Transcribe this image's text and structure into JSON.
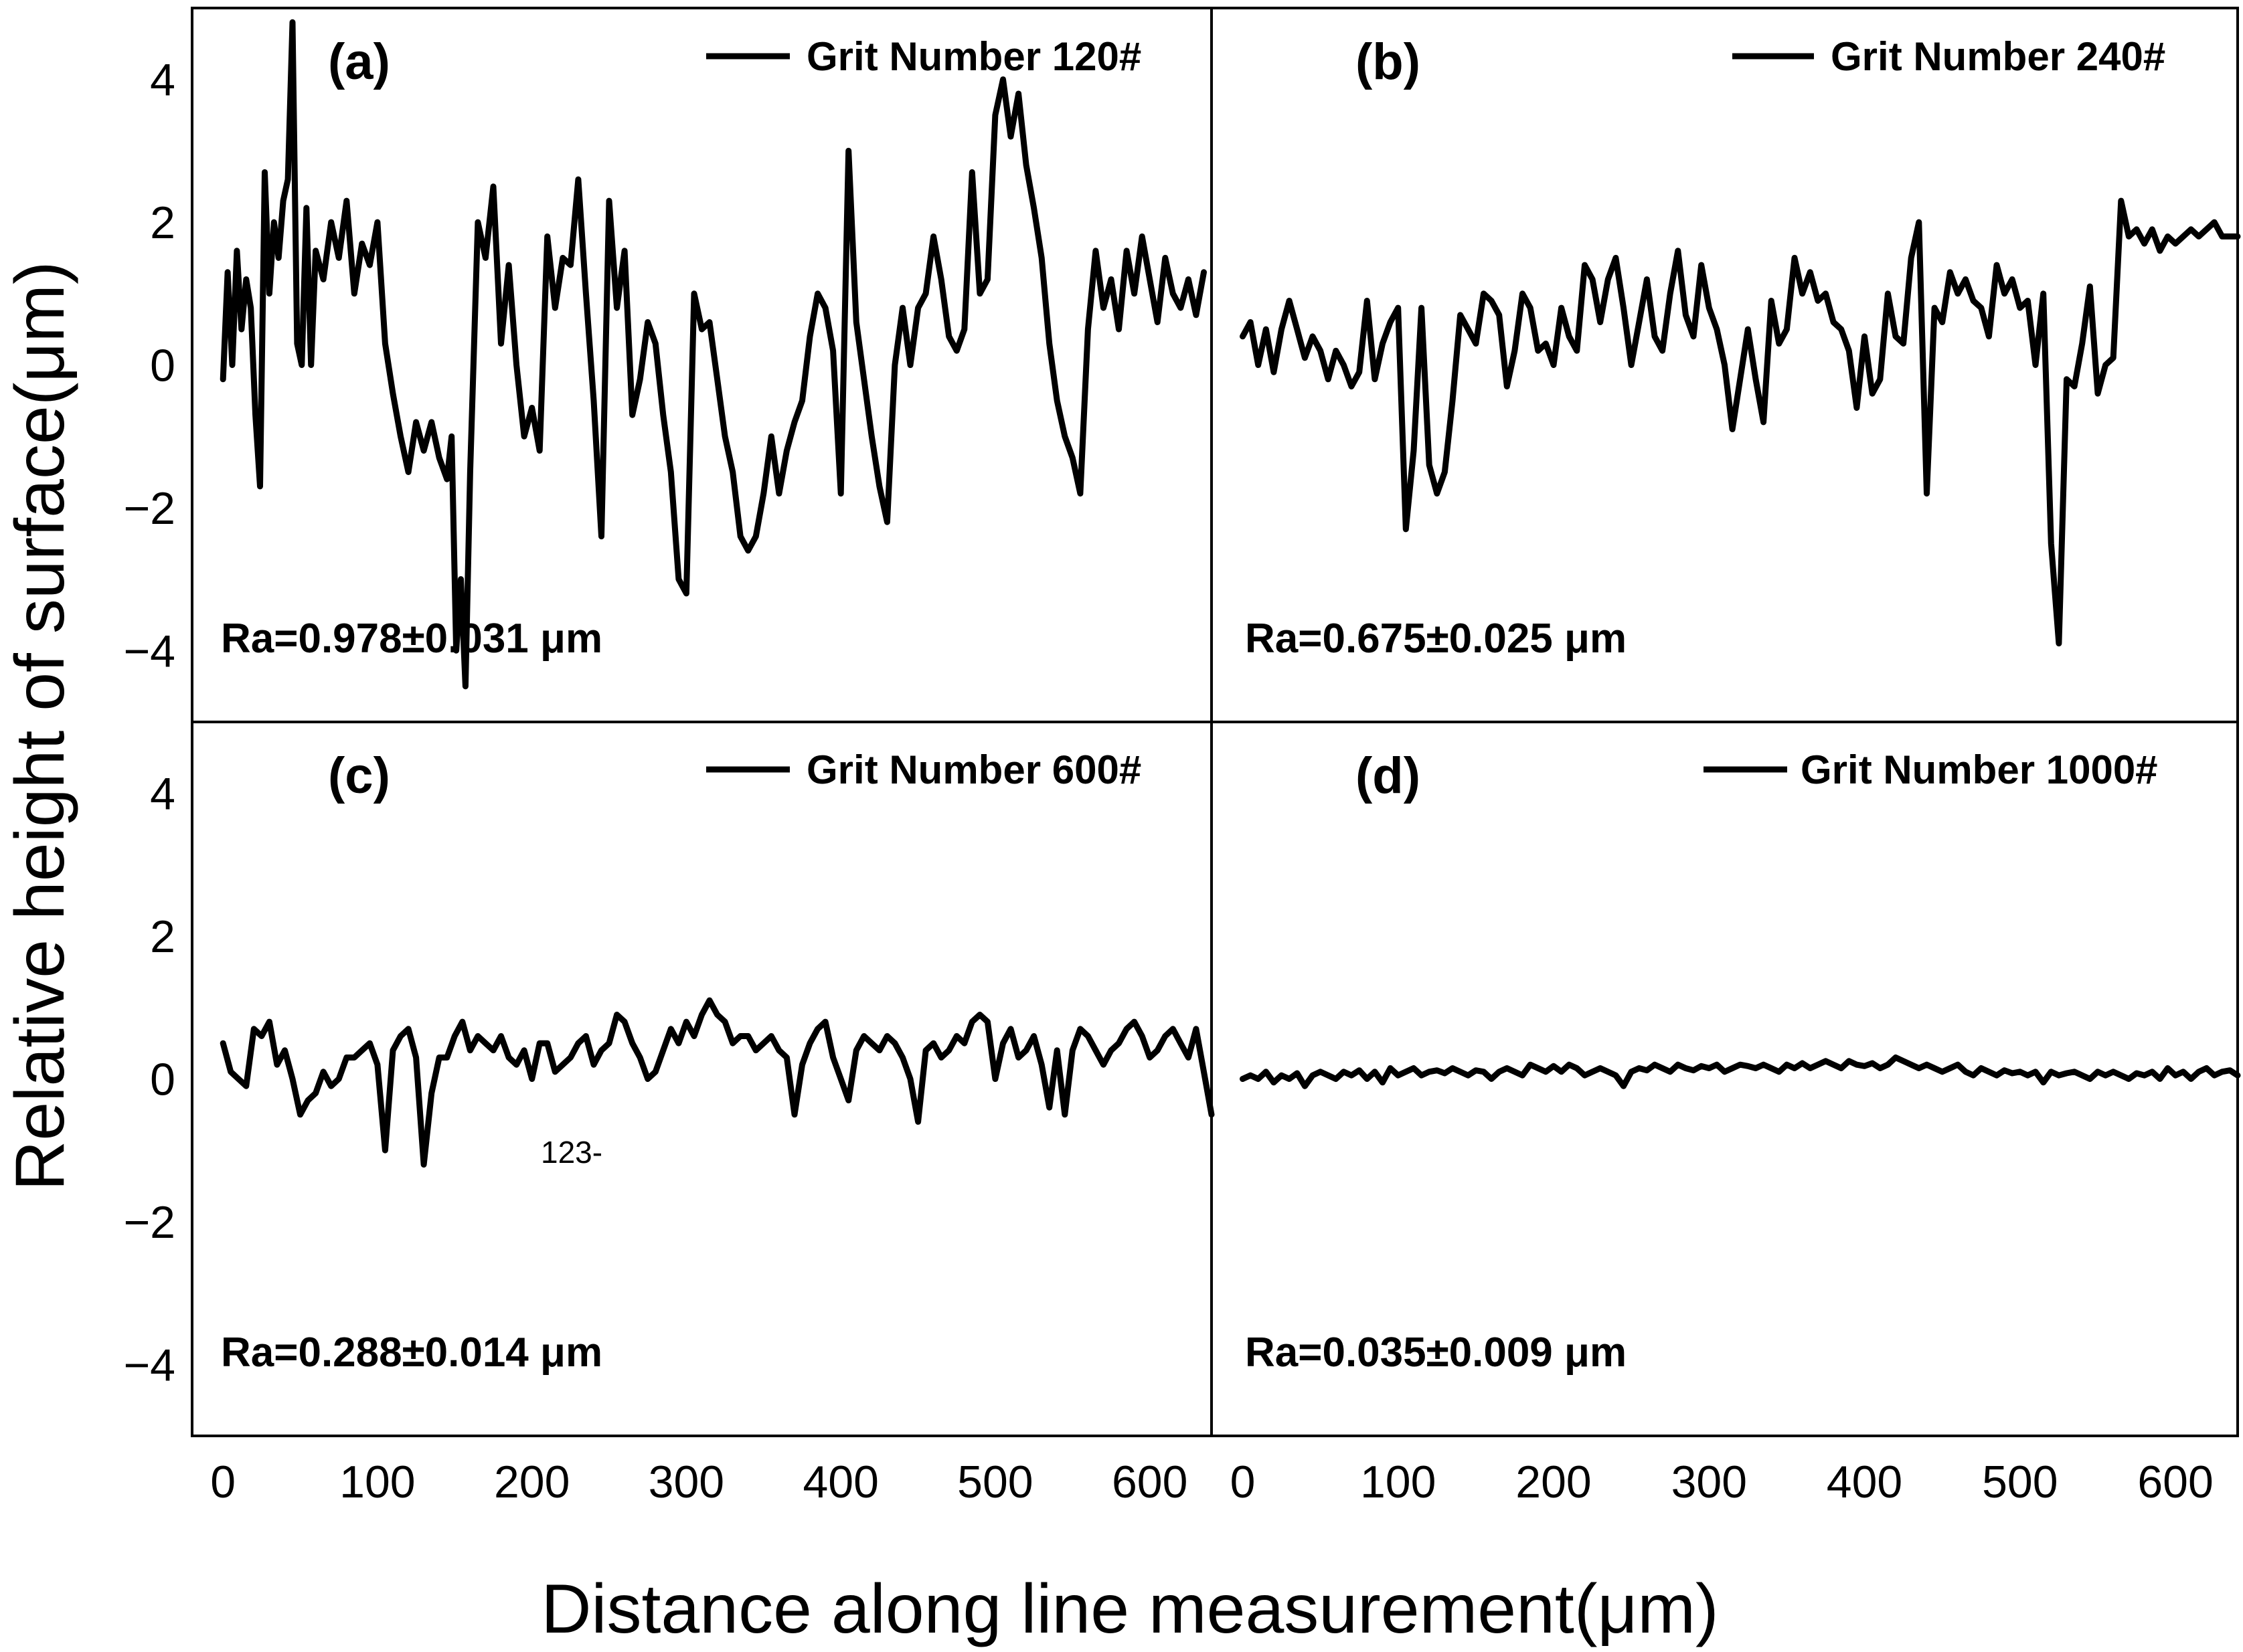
{
  "figure": {
    "xlabel": "Distance along line measurement(μm)",
    "ylabel": "Relative height of surface(μm)",
    "stray_text": "123-"
  },
  "chart_data": [
    {
      "type": "line",
      "panel_label": "(a)",
      "legend": "Grit Number 120#",
      "annotation": "Ra=0.978±0.031 μm",
      "xlim": [
        -20,
        640
      ],
      "ylim": [
        -5,
        5
      ],
      "xticks": [
        0,
        100,
        200,
        300,
        400,
        500,
        600
      ],
      "yticks": [
        -4,
        -2,
        0,
        2,
        4
      ],
      "x": [
        0,
        3,
        6,
        9,
        12,
        15,
        18,
        21,
        24,
        27,
        30,
        33,
        36,
        39,
        42,
        45,
        48,
        51,
        54,
        57,
        60,
        65,
        70,
        75,
        80,
        85,
        90,
        95,
        100,
        105,
        110,
        115,
        120,
        125,
        130,
        135,
        140,
        145,
        148,
        151,
        154,
        157,
        160,
        165,
        170,
        175,
        180,
        185,
        190,
        195,
        200,
        205,
        210,
        215,
        220,
        225,
        230,
        235,
        240,
        245,
        250,
        255,
        260,
        265,
        270,
        275,
        280,
        285,
        290,
        295,
        300,
        305,
        310,
        315,
        320,
        325,
        330,
        335,
        340,
        345,
        350,
        355,
        360,
        365,
        370,
        375,
        380,
        385,
        390,
        395,
        400,
        405,
        410,
        415,
        420,
        425,
        430,
        435,
        440,
        445,
        450,
        455,
        460,
        465,
        470,
        475,
        480,
        485,
        490,
        495,
        500,
        505,
        510,
        515,
        520,
        525,
        530,
        535,
        540,
        545,
        550,
        555,
        560,
        565,
        570,
        575,
        580,
        585,
        590,
        595,
        600,
        605,
        610,
        615,
        620,
        625,
        630,
        635
      ],
      "y": [
        -0.2,
        1.3,
        0.0,
        1.6,
        0.5,
        1.2,
        0.8,
        -0.7,
        -1.7,
        2.7,
        1.0,
        2.0,
        1.5,
        2.3,
        2.6,
        4.8,
        0.3,
        0.0,
        2.2,
        0.0,
        1.6,
        1.2,
        2.0,
        1.5,
        2.3,
        1.0,
        1.7,
        1.4,
        2.0,
        0.3,
        -0.4,
        -1.0,
        -1.5,
        -0.8,
        -1.2,
        -0.8,
        -1.3,
        -1.6,
        -1.0,
        -4.0,
        -3.0,
        -4.5,
        -1.5,
        2.0,
        1.5,
        2.5,
        0.3,
        1.4,
        0.0,
        -1.0,
        -0.6,
        -1.2,
        1.8,
        0.8,
        1.5,
        1.4,
        2.6,
        1.0,
        -0.5,
        -2.4,
        2.3,
        0.8,
        1.6,
        -0.7,
        -0.2,
        0.6,
        0.3,
        -0.7,
        -1.5,
        -3.0,
        -3.2,
        1.0,
        0.5,
        0.6,
        -0.2,
        -1.0,
        -1.5,
        -2.4,
        -2.6,
        -2.4,
        -1.8,
        -1.0,
        -1.8,
        -1.2,
        -0.8,
        -0.5,
        0.4,
        1.0,
        0.8,
        0.2,
        -1.8,
        3.0,
        0.6,
        -0.2,
        -1.0,
        -1.7,
        -2.2,
        0.0,
        0.8,
        0.0,
        0.8,
        1.0,
        1.8,
        1.2,
        0.4,
        0.2,
        0.5,
        2.7,
        1.0,
        1.2,
        3.5,
        4.0,
        3.2,
        3.8,
        2.8,
        2.2,
        1.5,
        0.3,
        -0.5,
        -1.0,
        -1.3,
        -1.8,
        0.5,
        1.6,
        0.8,
        1.2,
        0.5,
        1.6,
        1.0,
        1.8,
        1.2,
        0.6,
        1.5,
        1.0,
        0.8,
        1.2,
        0.7,
        1.3
      ]
    },
    {
      "type": "line",
      "panel_label": "(b)",
      "legend": "Grit Number 240#",
      "annotation": "Ra=0.675±0.025 μm",
      "xlim": [
        -20,
        640
      ],
      "ylim": [
        -5,
        5
      ],
      "xticks": [
        0,
        100,
        200,
        300,
        400,
        500,
        600
      ],
      "yticks": [
        -4,
        -2,
        0,
        2,
        4
      ],
      "x": [
        0,
        5,
        10,
        15,
        20,
        25,
        30,
        35,
        40,
        45,
        50,
        55,
        60,
        65,
        70,
        75,
        80,
        85,
        90,
        95,
        100,
        105,
        110,
        115,
        120,
        125,
        130,
        135,
        140,
        145,
        150,
        155,
        160,
        165,
        170,
        175,
        180,
        185,
        190,
        195,
        200,
        205,
        210,
        215,
        220,
        225,
        230,
        235,
        240,
        245,
        250,
        255,
        260,
        265,
        270,
        275,
        280,
        285,
        290,
        295,
        300,
        305,
        310,
        315,
        320,
        325,
        330,
        335,
        340,
        345,
        350,
        355,
        360,
        365,
        370,
        375,
        380,
        385,
        390,
        395,
        400,
        405,
        410,
        415,
        420,
        425,
        430,
        435,
        440,
        445,
        450,
        455,
        460,
        465,
        470,
        475,
        480,
        485,
        490,
        495,
        500,
        505,
        510,
        515,
        520,
        525,
        530,
        535,
        540,
        545,
        550,
        555,
        560,
        565,
        570,
        575,
        580,
        585,
        590,
        595,
        600,
        605,
        610,
        615,
        620,
        625,
        630,
        635,
        640
      ],
      "y": [
        0.4,
        0.6,
        0.0,
        0.5,
        -0.1,
        0.5,
        0.9,
        0.5,
        0.1,
        0.4,
        0.2,
        -0.2,
        0.2,
        0.0,
        -0.3,
        -0.1,
        0.9,
        -0.2,
        0.3,
        0.6,
        0.8,
        -2.3,
        -1.2,
        0.8,
        -1.4,
        -1.8,
        -1.5,
        -0.5,
        0.7,
        0.5,
        0.3,
        1.0,
        0.9,
        0.7,
        -0.3,
        0.2,
        1.0,
        0.8,
        0.2,
        0.3,
        0.0,
        0.8,
        0.4,
        0.2,
        1.4,
        1.2,
        0.6,
        1.2,
        1.5,
        0.8,
        0.0,
        0.6,
        1.2,
        0.4,
        0.2,
        1.0,
        1.6,
        0.7,
        0.4,
        1.4,
        0.8,
        0.5,
        0.0,
        -0.9,
        -0.2,
        0.5,
        -0.2,
        -0.8,
        0.9,
        0.3,
        0.5,
        1.5,
        1.0,
        1.3,
        0.9,
        1.0,
        0.6,
        0.5,
        0.2,
        -0.6,
        0.4,
        -0.4,
        -0.2,
        1.0,
        0.4,
        0.3,
        1.5,
        2.0,
        -1.8,
        0.8,
        0.6,
        1.3,
        1.0,
        1.2,
        0.9,
        0.8,
        0.4,
        1.4,
        1.0,
        1.2,
        0.8,
        0.9,
        0.0,
        1.0,
        -2.5,
        -3.9,
        -0.2,
        -0.3,
        0.3,
        1.1,
        -0.4,
        0.0,
        0.1,
        2.3,
        1.8,
        1.9,
        1.7,
        1.9,
        1.6,
        1.8,
        1.7,
        1.8,
        1.9,
        1.8,
        1.9,
        2.0,
        1.8,
        1.8,
        1.8
      ]
    },
    {
      "type": "line",
      "panel_label": "(c)",
      "legend": "Grit Number 600#",
      "annotation": "Ra=0.288±0.014 μm",
      "xlim": [
        -20,
        640
      ],
      "ylim": [
        -5,
        5
      ],
      "xticks": [
        0,
        100,
        200,
        300,
        400,
        500,
        600
      ],
      "yticks": [
        -4,
        -2,
        0,
        2,
        4
      ],
      "x": [
        0,
        5,
        10,
        15,
        20,
        25,
        30,
        35,
        40,
        45,
        50,
        55,
        60,
        65,
        70,
        75,
        80,
        85,
        90,
        95,
        100,
        105,
        110,
        115,
        120,
        125,
        130,
        135,
        140,
        145,
        150,
        155,
        160,
        165,
        170,
        175,
        180,
        185,
        190,
        195,
        200,
        205,
        210,
        215,
        220,
        225,
        230,
        235,
        240,
        245,
        250,
        255,
        260,
        265,
        270,
        275,
        280,
        285,
        290,
        295,
        300,
        305,
        310,
        315,
        320,
        325,
        330,
        335,
        340,
        345,
        350,
        355,
        360,
        365,
        370,
        375,
        380,
        385,
        390,
        395,
        400,
        405,
        410,
        415,
        420,
        425,
        430,
        435,
        440,
        445,
        450,
        455,
        460,
        465,
        470,
        475,
        480,
        485,
        490,
        495,
        500,
        505,
        510,
        515,
        520,
        525,
        530,
        535,
        540,
        545,
        550,
        555,
        560,
        565,
        570,
        575,
        580,
        585,
        590,
        595,
        600,
        605,
        610,
        615,
        620,
        625,
        630,
        635,
        640
      ],
      "y": [
        0.5,
        0.1,
        0.0,
        -0.1,
        0.7,
        0.6,
        0.8,
        0.2,
        0.4,
        0.0,
        -0.5,
        -0.3,
        -0.2,
        0.1,
        -0.1,
        0.0,
        0.3,
        0.3,
        0.4,
        0.5,
        0.2,
        -1.0,
        0.4,
        0.6,
        0.7,
        0.3,
        -1.2,
        -0.2,
        0.3,
        0.3,
        0.6,
        0.8,
        0.4,
        0.6,
        0.5,
        0.4,
        0.6,
        0.3,
        0.2,
        0.4,
        0.0,
        0.5,
        0.5,
        0.1,
        0.2,
        0.3,
        0.5,
        0.6,
        0.2,
        0.4,
        0.5,
        0.9,
        0.8,
        0.5,
        0.3,
        0.0,
        0.1,
        0.4,
        0.7,
        0.5,
        0.8,
        0.6,
        0.9,
        1.1,
        0.9,
        0.8,
        0.5,
        0.6,
        0.6,
        0.4,
        0.5,
        0.6,
        0.4,
        0.3,
        -0.5,
        0.2,
        0.5,
        0.7,
        0.8,
        0.3,
        0.0,
        -0.3,
        0.4,
        0.6,
        0.5,
        0.4,
        0.6,
        0.5,
        0.3,
        0.0,
        -0.6,
        0.4,
        0.5,
        0.3,
        0.4,
        0.6,
        0.5,
        0.8,
        0.9,
        0.8,
        0.0,
        0.5,
        0.7,
        0.3,
        0.4,
        0.6,
        0.2,
        -0.4,
        0.4,
        -0.5,
        0.4,
        0.7,
        0.6,
        0.4,
        0.2,
        0.4,
        0.5,
        0.7,
        0.8,
        0.6,
        0.3,
        0.4,
        0.6,
        0.7,
        0.5,
        0.3,
        0.7,
        0.1,
        -0.5
      ]
    },
    {
      "type": "line",
      "panel_label": "(d)",
      "legend": "Grit Number 1000#",
      "annotation": "Ra=0.035±0.009 μm",
      "xlim": [
        -20,
        640
      ],
      "ylim": [
        -5,
        5
      ],
      "xticks": [
        0,
        100,
        200,
        300,
        400,
        500,
        600
      ],
      "yticks": [
        -4,
        -2,
        0,
        2,
        4
      ],
      "x": [
        0,
        5,
        10,
        15,
        20,
        25,
        30,
        35,
        40,
        45,
        50,
        55,
        60,
        65,
        70,
        75,
        80,
        85,
        90,
        95,
        100,
        105,
        110,
        115,
        120,
        125,
        130,
        135,
        140,
        145,
        150,
        155,
        160,
        165,
        170,
        175,
        180,
        185,
        190,
        195,
        200,
        205,
        210,
        215,
        220,
        225,
        230,
        235,
        240,
        245,
        250,
        255,
        260,
        265,
        270,
        275,
        280,
        285,
        290,
        295,
        300,
        305,
        310,
        315,
        320,
        325,
        330,
        335,
        340,
        345,
        350,
        355,
        360,
        365,
        370,
        375,
        380,
        385,
        390,
        395,
        400,
        405,
        410,
        415,
        420,
        425,
        430,
        435,
        440,
        445,
        450,
        455,
        460,
        465,
        470,
        475,
        480,
        485,
        490,
        495,
        500,
        505,
        510,
        515,
        520,
        525,
        530,
        535,
        540,
        545,
        550,
        555,
        560,
        565,
        570,
        575,
        580,
        585,
        590,
        595,
        600,
        605,
        610,
        615,
        620,
        625,
        630,
        635,
        640
      ],
      "y": [
        0.0,
        0.05,
        0.0,
        0.1,
        -0.05,
        0.05,
        0.0,
        0.08,
        -0.1,
        0.05,
        0.1,
        0.05,
        0.0,
        0.1,
        0.05,
        0.12,
        0.0,
        0.1,
        -0.05,
        0.15,
        0.05,
        0.1,
        0.15,
        0.05,
        0.1,
        0.12,
        0.08,
        0.15,
        0.1,
        0.05,
        0.12,
        0.1,
        0.0,
        0.1,
        0.15,
        0.1,
        0.05,
        0.2,
        0.15,
        0.1,
        0.18,
        0.1,
        0.2,
        0.15,
        0.05,
        0.1,
        0.15,
        0.1,
        0.05,
        -0.1,
        0.1,
        0.15,
        0.12,
        0.2,
        0.15,
        0.1,
        0.2,
        0.15,
        0.12,
        0.18,
        0.15,
        0.2,
        0.1,
        0.15,
        0.2,
        0.18,
        0.15,
        0.2,
        0.15,
        0.1,
        0.2,
        0.15,
        0.22,
        0.15,
        0.2,
        0.25,
        0.2,
        0.15,
        0.25,
        0.2,
        0.18,
        0.22,
        0.15,
        0.2,
        0.3,
        0.25,
        0.2,
        0.15,
        0.2,
        0.15,
        0.1,
        0.15,
        0.2,
        0.1,
        0.05,
        0.15,
        0.1,
        0.05,
        0.12,
        0.08,
        0.1,
        0.05,
        0.1,
        -0.05,
        0.1,
        0.05,
        0.08,
        0.1,
        0.05,
        0.0,
        0.1,
        0.05,
        0.1,
        0.05,
        0.0,
        0.08,
        0.05,
        0.1,
        0.0,
        0.15,
        0.05,
        0.1,
        0.0,
        0.1,
        0.15,
        0.05,
        0.1,
        0.12,
        0.05
      ]
    }
  ]
}
